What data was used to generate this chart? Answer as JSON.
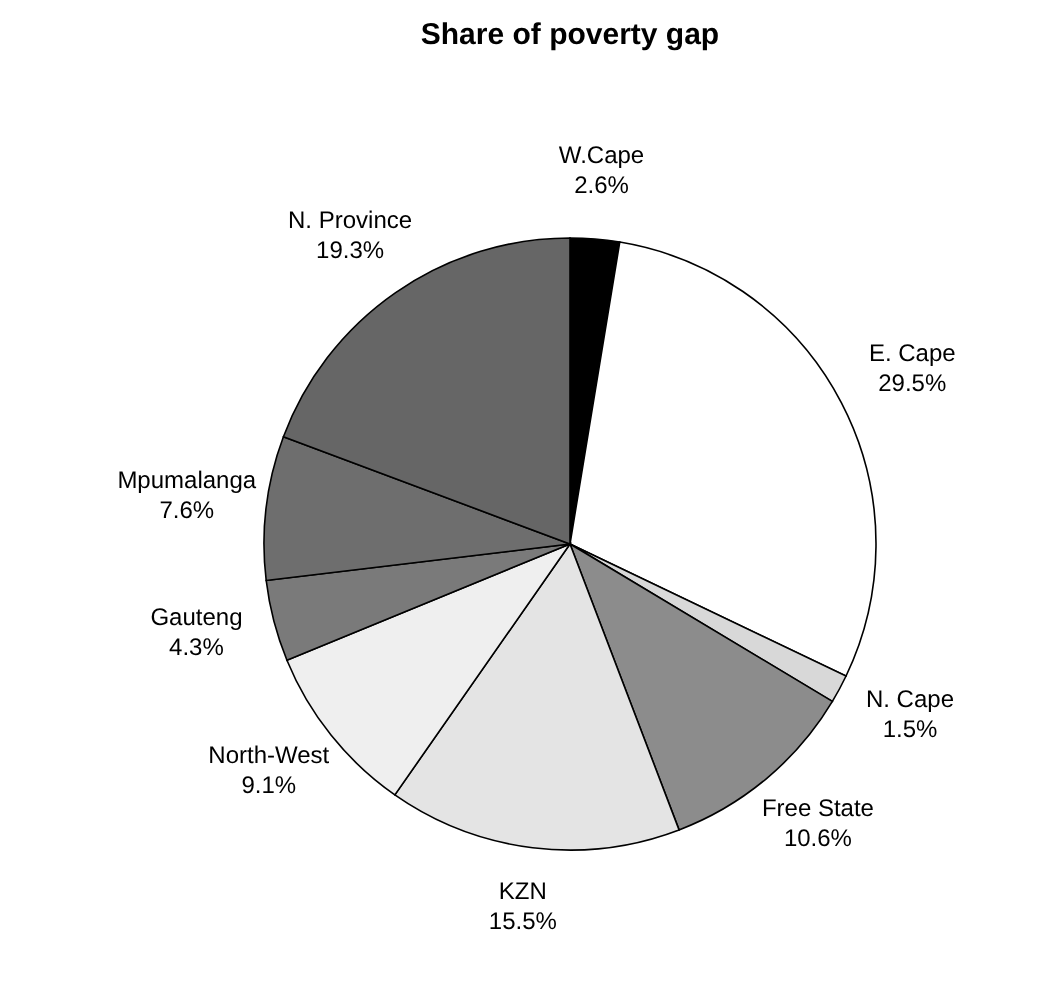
{
  "chart_data": {
    "type": "pie",
    "title": "Share of poverty gap",
    "categories": [
      "W.Cape",
      "E. Cape",
      "N. Cape",
      "Free State",
      "KZN",
      "North-West",
      "Gauteng",
      "Mpumalanga",
      "N. Province"
    ],
    "values": [
      2.6,
      29.5,
      1.5,
      10.6,
      15.5,
      9.1,
      4.3,
      7.6,
      19.3
    ],
    "value_labels": [
      "2.6%",
      "29.5%",
      "1.5%",
      "10.6%",
      "15.5%",
      "9.1%",
      "4.3%",
      "7.6%",
      "19.3%"
    ],
    "colors": [
      "#000000",
      "#ffffff",
      "#d8d8d8",
      "#8c8c8c",
      "#e4e4e4",
      "#efefef",
      "#7a7a7a",
      "#6e6e6e",
      "#666666"
    ]
  }
}
